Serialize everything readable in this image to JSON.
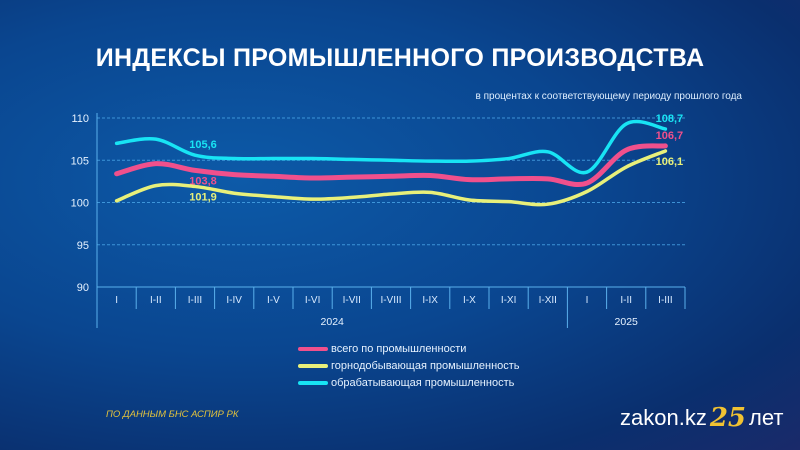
{
  "chart_data": {
    "type": "line",
    "title": "ИНДЕКСЫ ПРОМЫШЛЕННОГО ПРОИЗВОДСТВА",
    "subtitle": "в процентах к соответствующему периоду прошлого года",
    "categories": [
      "I",
      "I-II",
      "I-III",
      "I-IV",
      "I-V",
      "I-VI",
      "I-VII",
      "I-VIII",
      "I-IX",
      "I-X",
      "I-XI",
      "I-XII",
      "I",
      "I-II",
      "I-III"
    ],
    "year_groups": [
      {
        "label": "2024",
        "count": 12
      },
      {
        "label": "2025",
        "count": 3
      }
    ],
    "ylim": [
      90,
      110
    ],
    "yticks": [
      90,
      95,
      100,
      105,
      110
    ],
    "grid": true,
    "series": [
      {
        "name": "всего по промышленности",
        "color": "#f0508c",
        "values": [
          103.4,
          104.6,
          103.8,
          103.3,
          103.1,
          102.9,
          103.0,
          103.1,
          103.2,
          102.7,
          102.8,
          102.8,
          102.3,
          106.2,
          106.7
        ],
        "labels": [
          {
            "index": 2,
            "text": "103,8"
          },
          {
            "index": 14,
            "text": "106,7"
          }
        ]
      },
      {
        "name": "горнодобывающая промышленность",
        "color": "#e8f07a",
        "values": [
          100.2,
          102.0,
          101.9,
          101.1,
          100.7,
          100.4,
          100.6,
          101.0,
          101.2,
          100.3,
          100.1,
          99.8,
          101.3,
          104.2,
          106.1
        ],
        "labels": [
          {
            "index": 2,
            "text": "101,9"
          },
          {
            "index": 14,
            "text": "106,1"
          }
        ]
      },
      {
        "name": "обрабатывающая промышленность",
        "color": "#18e4f4",
        "values": [
          107.0,
          107.5,
          105.6,
          105.2,
          105.2,
          105.2,
          105.1,
          105.0,
          104.9,
          104.9,
          105.2,
          106.0,
          103.6,
          109.3,
          108.7
        ],
        "labels": [
          {
            "index": 2,
            "text": "105,6"
          },
          {
            "index": 14,
            "text": "108,7"
          }
        ]
      }
    ]
  },
  "footer": {
    "source": "ПО ДАННЫМ БНС АСПИР РК",
    "logo_text": "zakon.kz",
    "logo_number": "25",
    "logo_suffix": "лет"
  }
}
